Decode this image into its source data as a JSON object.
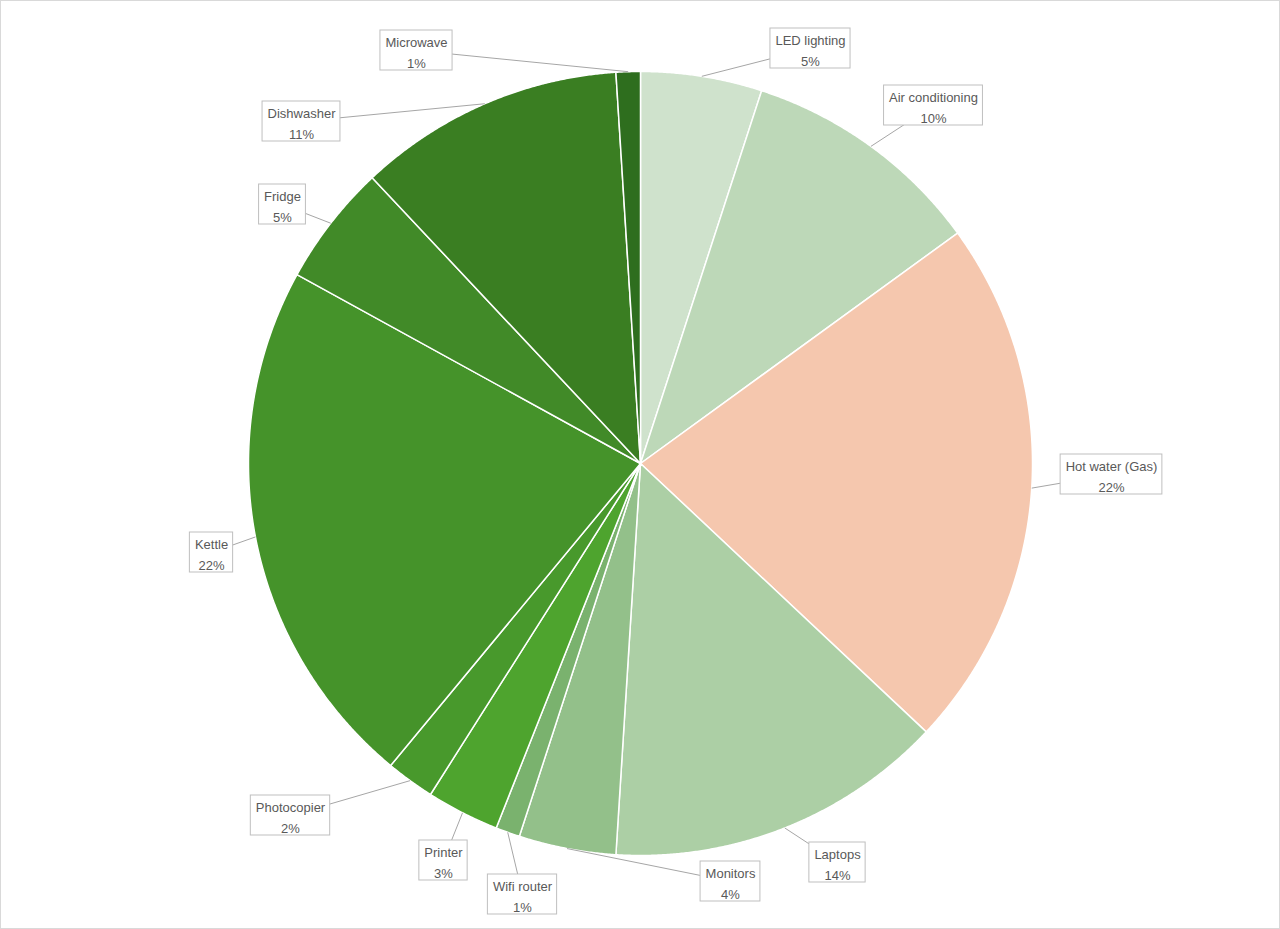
{
  "chart_data": {
    "type": "pie",
    "categories": [
      "LED lighting",
      "Air conditioning",
      "Hot water (Gas)",
      "Laptops",
      "Monitors",
      "Wifi router",
      "Printer",
      "Photocopier",
      "Kettle",
      "Fridge",
      "Dishwasher",
      "Microwave"
    ],
    "values": [
      5,
      10,
      22,
      14,
      4,
      1,
      3,
      2,
      22,
      5,
      11,
      1
    ],
    "value_labels": [
      "5%",
      "10%",
      "22%",
      "14%",
      "4%",
      "1%",
      "3%",
      "2%",
      "22%",
      "5%",
      "11%",
      "1%"
    ],
    "colors": [
      "#cfe2cc",
      "#bdd8b8",
      "#f5c7ae",
      "#accfa5",
      "#93c08a",
      "#7ab26e",
      "#4ea42e",
      "#48992c",
      "#45932a",
      "#418a28",
      "#3a7e22",
      "#2e6e1e"
    ],
    "data_labels": true
  }
}
